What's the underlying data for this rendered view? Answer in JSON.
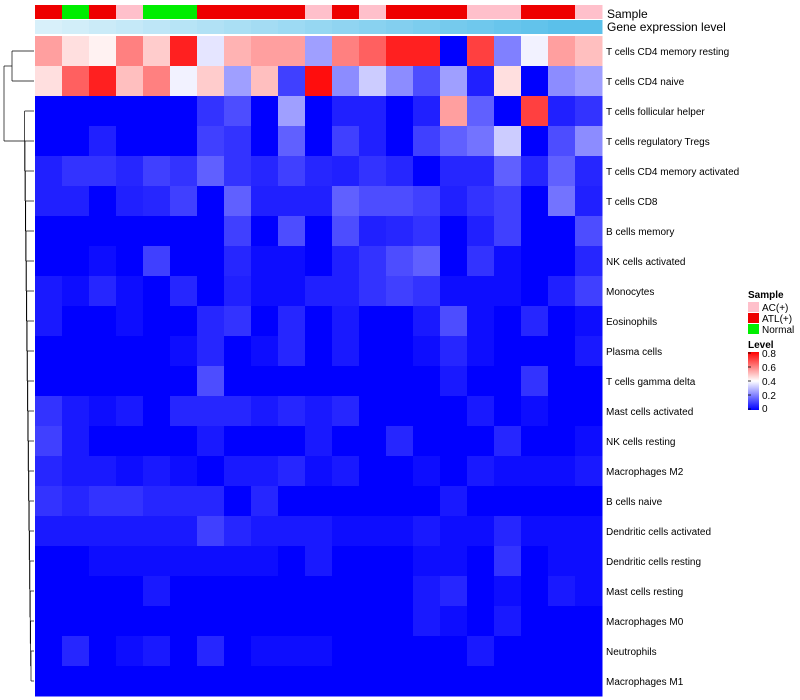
{
  "chart_data": {
    "type": "heatmap",
    "title": "",
    "annotation_labels": {
      "sample": "Sample",
      "gene_level": "Gene expression level"
    },
    "sample_groups": [
      "ATL(+)",
      "Normal",
      "ATL(+)",
      "AC(+)",
      "Normal",
      "Normal",
      "ATL(+)",
      "ATL(+)",
      "ATL(+)",
      "ATL(+)",
      "AC(+)",
      "ATL(+)",
      "AC(+)",
      "ATL(+)",
      "ATL(+)",
      "ATL(+)",
      "AC(+)",
      "AC(+)",
      "ATL(+)",
      "ATL(+)",
      "AC(+)"
    ],
    "gene_level": [
      0.05,
      0.1,
      0.15,
      0.2,
      0.25,
      0.3,
      0.35,
      0.4,
      0.45,
      0.5,
      0.55,
      0.6,
      0.65,
      0.7,
      0.75,
      0.8,
      0.85,
      0.9,
      0.95,
      1.0,
      1.0
    ],
    "rows": [
      "T cells CD4 memory resting",
      "T cells CD4 naive",
      "T cells follicular helper",
      "T cells regulatory  Tregs",
      "T cells CD4 memory activated",
      "T cells CD8",
      "B cells memory",
      "NK cells activated",
      "Monocytes",
      "Eosinophils",
      "Plasma cells",
      "T cells gamma delta",
      "Mast cells activated",
      "NK cells resting",
      "Macrophages M2",
      "B cells naive",
      "Dendritic cells activated",
      "Dendritic cells resting",
      "Mast cells resting",
      "Macrophages M0",
      "Neutrophils",
      "Macrophages M1"
    ],
    "values": [
      [
        0.55,
        0.45,
        0.42,
        0.6,
        0.48,
        0.75,
        0.36,
        0.52,
        0.55,
        0.55,
        0.25,
        0.6,
        0.65,
        0.75,
        0.75,
        0.0,
        0.7,
        0.2,
        0.38,
        0.55,
        0.5
      ],
      [
        0.45,
        0.65,
        0.75,
        0.5,
        0.6,
        0.38,
        0.48,
        0.25,
        0.5,
        0.1,
        0.78,
        0.22,
        0.32,
        0.22,
        0.12,
        0.25,
        0.05,
        0.45,
        0.0,
        0.22,
        0.25
      ],
      [
        0.0,
        0.0,
        0.0,
        0.0,
        0.0,
        0.0,
        0.08,
        0.12,
        0.0,
        0.25,
        0.0,
        0.05,
        0.05,
        0.0,
        0.05,
        0.55,
        0.15,
        0.0,
        0.7,
        0.05,
        0.08
      ],
      [
        0.0,
        0.0,
        0.05,
        0.0,
        0.0,
        0.0,
        0.1,
        0.08,
        0.0,
        0.15,
        0.0,
        0.1,
        0.05,
        0.0,
        0.1,
        0.15,
        0.18,
        0.32,
        0.0,
        0.12,
        0.22
      ],
      [
        0.05,
        0.08,
        0.08,
        0.06,
        0.1,
        0.08,
        0.15,
        0.08,
        0.06,
        0.1,
        0.06,
        0.05,
        0.08,
        0.06,
        0.0,
        0.06,
        0.06,
        0.15,
        0.06,
        0.15,
        0.06
      ],
      [
        0.05,
        0.05,
        0.0,
        0.05,
        0.06,
        0.1,
        0.0,
        0.15,
        0.05,
        0.05,
        0.05,
        0.15,
        0.12,
        0.12,
        0.1,
        0.05,
        0.08,
        0.1,
        0.0,
        0.18,
        0.05
      ],
      [
        0.0,
        0.0,
        0.0,
        0.0,
        0.0,
        0.0,
        0.0,
        0.1,
        0.0,
        0.12,
        0.0,
        0.12,
        0.05,
        0.06,
        0.08,
        0.0,
        0.05,
        0.1,
        0.0,
        0.0,
        0.12
      ],
      [
        0.0,
        0.0,
        0.02,
        0.0,
        0.1,
        0.0,
        0.0,
        0.06,
        0.02,
        0.02,
        0.0,
        0.05,
        0.08,
        0.12,
        0.15,
        0.0,
        0.08,
        0.02,
        0.0,
        0.0,
        0.06
      ],
      [
        0.04,
        0.02,
        0.06,
        0.02,
        0.0,
        0.06,
        0.0,
        0.05,
        0.02,
        0.02,
        0.05,
        0.05,
        0.08,
        0.1,
        0.08,
        0.02,
        0.02,
        0.02,
        0.0,
        0.05,
        0.1
      ],
      [
        0.04,
        0.0,
        0.0,
        0.02,
        0.0,
        0.0,
        0.06,
        0.08,
        0.0,
        0.06,
        0.0,
        0.04,
        0.0,
        0.0,
        0.04,
        0.12,
        0.02,
        0.0,
        0.06,
        0.0,
        0.02
      ],
      [
        0.0,
        0.0,
        0.0,
        0.0,
        0.0,
        0.02,
        0.06,
        0.0,
        0.02,
        0.06,
        0.0,
        0.04,
        0.0,
        0.0,
        0.02,
        0.06,
        0.02,
        0.0,
        0.0,
        0.0,
        0.04
      ],
      [
        0.0,
        0.0,
        0.0,
        0.0,
        0.0,
        0.0,
        0.12,
        0.0,
        0.0,
        0.0,
        0.0,
        0.0,
        0.0,
        0.0,
        0.0,
        0.04,
        0.0,
        0.0,
        0.08,
        0.0,
        0.0
      ],
      [
        0.08,
        0.04,
        0.02,
        0.04,
        0.0,
        0.06,
        0.06,
        0.06,
        0.04,
        0.06,
        0.04,
        0.06,
        0.0,
        0.0,
        0.0,
        0.0,
        0.04,
        0.0,
        0.02,
        0.0,
        0.0
      ],
      [
        0.1,
        0.04,
        0.0,
        0.0,
        0.0,
        0.0,
        0.04,
        0.0,
        0.0,
        0.0,
        0.04,
        0.0,
        0.0,
        0.06,
        0.0,
        0.0,
        0.0,
        0.06,
        0.0,
        0.0,
        0.02
      ],
      [
        0.06,
        0.04,
        0.04,
        0.02,
        0.04,
        0.02,
        0.0,
        0.04,
        0.04,
        0.06,
        0.02,
        0.04,
        0.0,
        0.0,
        0.02,
        0.0,
        0.04,
        0.02,
        0.02,
        0.02,
        0.04
      ],
      [
        0.08,
        0.06,
        0.08,
        0.08,
        0.06,
        0.06,
        0.06,
        0.0,
        0.06,
        0.0,
        0.0,
        0.0,
        0.0,
        0.0,
        0.0,
        0.04,
        0.0,
        0.0,
        0.0,
        0.0,
        0.0
      ],
      [
        0.04,
        0.04,
        0.04,
        0.04,
        0.04,
        0.04,
        0.1,
        0.06,
        0.04,
        0.04,
        0.04,
        0.02,
        0.02,
        0.02,
        0.04,
        0.02,
        0.02,
        0.06,
        0.02,
        0.02,
        0.02
      ],
      [
        0.0,
        0.0,
        0.02,
        0.02,
        0.02,
        0.02,
        0.02,
        0.02,
        0.02,
        0.0,
        0.04,
        0.0,
        0.0,
        0.0,
        0.02,
        0.02,
        0.0,
        0.08,
        0.0,
        0.02,
        0.02
      ],
      [
        0.0,
        0.0,
        0.0,
        0.0,
        0.04,
        0.0,
        0.0,
        0.0,
        0.0,
        0.0,
        0.0,
        0.0,
        0.0,
        0.0,
        0.04,
        0.06,
        0.0,
        0.02,
        0.0,
        0.04,
        0.02
      ],
      [
        0.0,
        0.0,
        0.0,
        0.0,
        0.0,
        0.0,
        0.0,
        0.0,
        0.0,
        0.0,
        0.0,
        0.0,
        0.0,
        0.0,
        0.04,
        0.02,
        0.0,
        0.04,
        0.0,
        0.0,
        0.0
      ],
      [
        0.0,
        0.06,
        0.0,
        0.02,
        0.04,
        0.0,
        0.06,
        0.0,
        0.02,
        0.02,
        0.02,
        0.0,
        0.0,
        0.0,
        0.0,
        0.0,
        0.04,
        0.0,
        0.0,
        0.0,
        0.0
      ],
      [
        0.0,
        0.0,
        0.0,
        0.0,
        0.0,
        0.0,
        0.0,
        0.0,
        0.0,
        0.0,
        0.0,
        0.0,
        0.0,
        0.0,
        0.0,
        0.0,
        0.0,
        0.0,
        0.0,
        0.0,
        0.0
      ]
    ],
    "sample_legend": {
      "title": "Sample",
      "entries": [
        {
          "label": "AC(+)",
          "color": "#ffc0cb"
        },
        {
          "label": "ATL(+)",
          "color": "#ee0000"
        },
        {
          "label": "Normal",
          "color": "#00ee00"
        }
      ]
    },
    "level_legend": {
      "title": "Level",
      "ticks": [
        "0.8",
        "0.6",
        "0.4",
        "0.2",
        "0"
      ],
      "range": [
        0,
        0.8
      ]
    },
    "color_scale": {
      "low": "#0000ff",
      "mid": "#ffffff",
      "high": "#ff0000",
      "range": [
        0,
        0.8
      ]
    },
    "level_bar_colors": {
      "low": "#dff3fb",
      "high": "#5bc0ea"
    }
  }
}
